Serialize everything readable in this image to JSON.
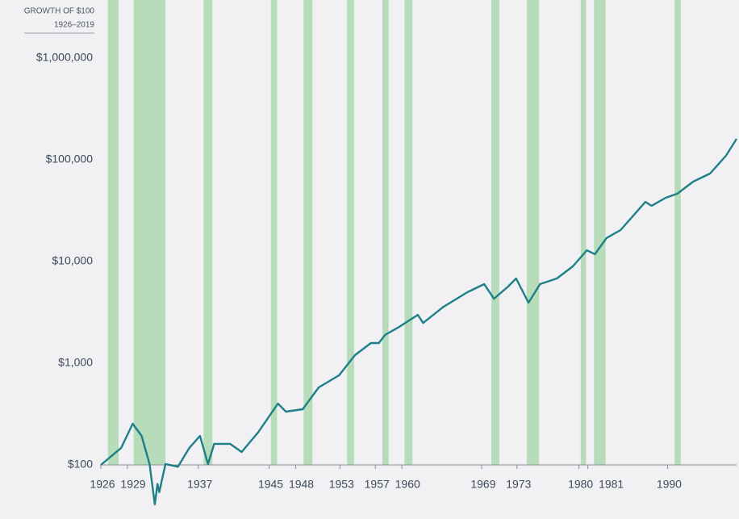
{
  "chart_data": {
    "type": "line",
    "title": "GROWTH OF $100",
    "subtitle": "1926–2019",
    "log_scale": true,
    "grid": false,
    "band_color": "#b6dcba",
    "recessions": [
      [
        1926.8,
        1928.0
      ],
      [
        1929.7,
        1933.3
      ],
      [
        1937.6,
        1938.6
      ],
      [
        1945.2,
        1945.9
      ],
      [
        1948.9,
        1949.9
      ],
      [
        1953.8,
        1954.6
      ],
      [
        1957.8,
        1958.5
      ],
      [
        1960.3,
        1961.2
      ],
      [
        1970.1,
        1971.0
      ],
      [
        1974.1,
        1975.5
      ],
      [
        1980.2,
        1980.8
      ],
      [
        1981.7,
        1983.0
      ],
      [
        1990.8,
        1991.5
      ]
    ],
    "xlim": [
      1926,
      1997.8
    ],
    "xticks": [
      1926,
      1929,
      1937,
      1945,
      1948,
      1953,
      1957,
      1960,
      1969,
      1973,
      1980,
      1981,
      1990
    ],
    "ylim": [
      100,
      1000000
    ],
    "yticks": [
      {
        "value": 100,
        "label": "$100"
      },
      {
        "value": 1000,
        "label": "$1,000"
      },
      {
        "value": 10000,
        "label": "$10,000"
      },
      {
        "value": 100000,
        "label": "$100,000"
      },
      {
        "value": 1000000,
        "label": "$1,000,000"
      }
    ],
    "x": [
      1926.0,
      1928.3,
      1929.6,
      1930.6,
      1931.5,
      1932.1,
      1932.4,
      1932.6,
      1933.3,
      1934.7,
      1936.0,
      1937.2,
      1938.1,
      1938.8,
      1940.6,
      1941.9,
      1943.8,
      1946.0,
      1946.9,
      1948.8,
      1950.6,
      1952.9,
      1954.7,
      1956.5,
      1957.4,
      1958.1,
      1959.7,
      1961.8,
      1962.4,
      1964.7,
      1967.4,
      1969.3,
      1970.4,
      1972.0,
      1972.9,
      1974.3,
      1975.6,
      1977.5,
      1979.3,
      1980.9,
      1981.8,
      1983.1,
      1984.7,
      1987.5,
      1988.2,
      1989.8,
      1991.1,
      1992.9,
      1994.8,
      1996.6,
      1997.8
    ],
    "series": [
      {
        "color": "#1e7f87",
        "values": [
          100,
          147,
          254,
          193,
          102,
          41,
          65,
          54,
          102,
          96,
          147,
          193,
          102,
          161,
          161,
          134,
          211,
          401,
          334,
          353,
          578,
          760,
          1200,
          1580,
          1580,
          1900,
          2280,
          2990,
          2490,
          3590,
          4990,
          6000,
          4310,
          5670,
          6810,
          3940,
          6000,
          6810,
          8960,
          12900,
          11800,
          17000,
          20400,
          38600,
          35300,
          42400,
          46400,
          61100,
          73300,
          109600,
          160700
        ]
      }
    ]
  }
}
